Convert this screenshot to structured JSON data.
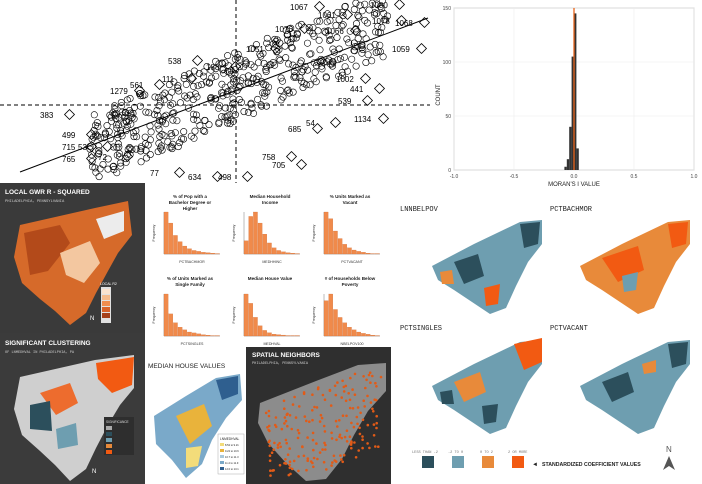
{
  "scatter": {
    "labels": [
      {
        "t": "1067",
        "c": "#000"
      },
      {
        "t": "1080",
        "c": "#000"
      },
      {
        "t": "1061",
        "c": "#000"
      },
      {
        "t": "1078",
        "c": "#000"
      },
      {
        "t": "1068",
        "c": "#000"
      },
      {
        "t": "1076",
        "c": "#000"
      },
      {
        "t": "1066",
        "c": "#000"
      },
      {
        "t": "1051",
        "c": "#000"
      },
      {
        "t": "1059",
        "c": "#000"
      },
      {
        "t": "538",
        "c": "#000"
      },
      {
        "t": "188",
        "c": "#000"
      },
      {
        "t": "111",
        "c": "#000"
      },
      {
        "t": "1279",
        "c": "#000"
      },
      {
        "t": "561",
        "c": "#000"
      },
      {
        "t": "1002",
        "c": "#000"
      },
      {
        "t": "441",
        "c": "#000"
      },
      {
        "t": "539",
        "c": "#000"
      },
      {
        "t": "383",
        "c": "#000"
      },
      {
        "t": "499",
        "c": "#000"
      },
      {
        "t": "1134",
        "c": "#000"
      },
      {
        "t": "715",
        "c": "#000"
      },
      {
        "t": "765",
        "c": "#000"
      },
      {
        "t": "758",
        "c": "#000"
      },
      {
        "t": "705",
        "c": "#000"
      },
      {
        "t": "634",
        "c": "#000"
      },
      {
        "t": "498",
        "c": "#000"
      },
      {
        "t": "685",
        "c": "#000"
      },
      {
        "t": "54",
        "c": "#000"
      },
      {
        "t": "53",
        "c": "#000"
      },
      {
        "t": "77",
        "c": "#000"
      },
      {
        "t": "72",
        "c": "#000"
      }
    ]
  },
  "hist": {
    "ylabel": "COUNT",
    "xlabel": "MORAN'S I VALUE",
    "xticks": [
      "-1.0",
      "-0.5",
      "0.0",
      "0.5",
      "1.0"
    ],
    "yticks": [
      "0",
      "50",
      "100",
      "150"
    ],
    "marker_color": "#e8641b"
  },
  "gwr": {
    "title": "LOCAL GWR R - SQUARED",
    "subtitle": "PHILADELPHIA, PENNSYLVANIA",
    "legend_title": "LOCAL R2",
    "north": "N"
  },
  "clustering": {
    "title": "SIGNIFICANT CLUSTERING",
    "subtitle": "OF LNMEDHVAL IN PHILADELPHIA, PA",
    "legend_title": "SIGNIFICANCE",
    "north": "N"
  },
  "median_map": {
    "title": "MEDIAN HOUSE VALUES",
    "legend_title": "LNMEDHVAL",
    "legend_items": [
      "8.52 to 9.21",
      "9.22 to 10.6",
      "10.7 to 11.3",
      "11.4 to 11.9",
      "12.0 to 13.1"
    ]
  },
  "neighbors": {
    "title": "SPATIAL NEIGHBORS",
    "subtitle": "PHILADELPHIA, PENNSYLVANIA"
  },
  "small_hists": [
    {
      "title": "% of Pop with a Bachelor Degree or Higher",
      "xlabel": "PCTBACHMOR",
      "ylabel": "Frequency"
    },
    {
      "title": "Median Household Income",
      "xlabel": "MEDHHINC",
      "ylabel": "Frequency"
    },
    {
      "title": "% Units Marked as Vacant",
      "xlabel": "PCTVACANT",
      "ylabel": "Frequency"
    },
    {
      "title": "% of Units Marked as Single Family",
      "xlabel": "PCTSINGLES",
      "ylabel": "Frequency"
    },
    {
      "title": "Median House Value",
      "xlabel": "MEDHVAL",
      "ylabel": "Frequency"
    },
    {
      "title": "# of Households Below Poverty",
      "xlabel": "NBELPOV100",
      "ylabel": "Frequency"
    }
  ],
  "coef_maps": {
    "titles": [
      "LNNBELPOV",
      "PCTBACHMOR",
      "PCTSINGLES",
      "PCTVACANT"
    ],
    "legend": [
      "LESS THAN -2",
      "-2 TO 0",
      "0 TO 2",
      "2 OR MORE"
    ],
    "legend_colors": [
      "#2c4f5c",
      "#6e9eb0",
      "#e88a3a",
      "#f25a12"
    ],
    "legend_caption": "STANDARDIZED COEFFICIENT VALUES",
    "north": "N"
  },
  "chart_data": [
    {
      "type": "scatter",
      "title": "",
      "series": [
        {
          "values": []
        }
      ]
    },
    {
      "type": "bar",
      "title": "",
      "xlabel": "MORAN'S I VALUE",
      "ylabel": "COUNT",
      "xlim": [
        -1.0,
        1.0
      ],
      "ylim": [
        0,
        150
      ],
      "marker_x": 0.0,
      "values_x": [
        -0.08,
        -0.06,
        -0.04,
        -0.02,
        0.0,
        0.02
      ],
      "values": [
        3,
        10,
        40,
        105,
        145,
        20
      ]
    },
    {
      "type": "bar",
      "title": "% of Pop with a Bachelor Degree or Higher",
      "xlabel": "PCTBACHMOR",
      "ylabel": "Frequency",
      "values": [
        95,
        70,
        42,
        28,
        18,
        12,
        8,
        6,
        4,
        3,
        2,
        1
      ]
    },
    {
      "type": "bar",
      "title": "Median Household Income",
      "xlabel": "MEDHHINC",
      "ylabel": "Frequency",
      "values": [
        30,
        85,
        95,
        70,
        45,
        25,
        14,
        8,
        5,
        3,
        2,
        1
      ]
    },
    {
      "type": "bar",
      "title": "% Units Marked as Vacant",
      "xlabel": "PCTVACANT",
      "ylabel": "Frequency",
      "values": [
        95,
        80,
        52,
        35,
        22,
        14,
        9,
        6,
        4,
        2,
        1,
        1
      ]
    },
    {
      "type": "bar",
      "title": "% of Units Marked as Single Family",
      "xlabel": "PCTSINGLES",
      "ylabel": "Frequency",
      "values": [
        95,
        50,
        30,
        20,
        14,
        9,
        7,
        5,
        3,
        2,
        1,
        1
      ]
    },
    {
      "type": "bar",
      "title": "Median House Value",
      "xlabel": "MEDHVAL",
      "ylabel": "Frequency",
      "values": [
        90,
        70,
        40,
        22,
        12,
        7,
        4,
        3,
        2,
        1,
        1,
        1
      ]
    },
    {
      "type": "bar",
      "title": "# of Households Below Poverty",
      "xlabel": "NBELPOV100",
      "ylabel": "Frequency",
      "values": [
        80,
        95,
        60,
        42,
        30,
        20,
        14,
        9,
        6,
        4,
        2,
        1
      ]
    }
  ]
}
